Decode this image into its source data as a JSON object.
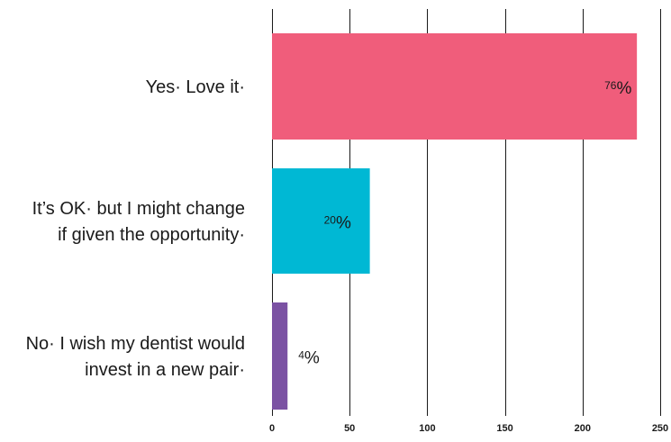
{
  "chart_data": {
    "type": "bar",
    "orientation": "horizontal",
    "categories": [
      [
        "Yes· Love it·"
      ],
      [
        "It’s OK· but I might change",
        "if given the opportunity·"
      ],
      [
        "No· I wish my dentist would",
        "invest in a new pair·"
      ]
    ],
    "values": [
      235,
      63,
      10
    ],
    "data_labels": [
      {
        "num": "76",
        "pct": "%"
      },
      {
        "num": "20",
        "pct": "%"
      },
      {
        "num": "4",
        "pct": "%"
      }
    ],
    "colors": [
      "#f05d7b",
      "#00b8d4",
      "#7b52a3"
    ],
    "xlim": [
      0,
      250
    ],
    "xticks": [
      0,
      50,
      100,
      150,
      200,
      250
    ],
    "grid": true,
    "title": "",
    "xlabel": "",
    "ylabel": ""
  }
}
